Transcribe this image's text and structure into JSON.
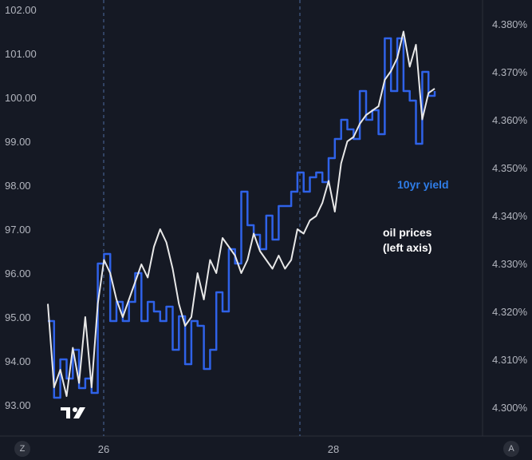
{
  "chart_data": {
    "type": "line",
    "title": "",
    "x_ticks": [
      "26",
      "28"
    ],
    "left_axis": {
      "label": "",
      "ticks": [
        "102.00",
        "101.00",
        "100.00",
        "99.00",
        "98.00",
        "97.00",
        "96.00",
        "95.00",
        "94.00",
        "93.00"
      ],
      "range": [
        92.9,
        102.3
      ]
    },
    "right_axis": {
      "label": "",
      "ticks": [
        "4.380%",
        "4.370%",
        "4.360%",
        "4.350%",
        "4.340%",
        "4.330%",
        "4.320%",
        "4.310%",
        "4.300%"
      ],
      "range": [
        4.2982,
        4.3845
      ]
    },
    "series": [
      {
        "name": "oil prices (left axis)",
        "axis": "left",
        "color": "#e8e8e8",
        "x": [
          0,
          1,
          2,
          3,
          4,
          5,
          6,
          7,
          8,
          9,
          10,
          11,
          12,
          13,
          14,
          15,
          16,
          17,
          18,
          19,
          20,
          21,
          22,
          23,
          24,
          25,
          26,
          27,
          28,
          29,
          30,
          31,
          32,
          33,
          34,
          35,
          36,
          37,
          38,
          39,
          40,
          41,
          42,
          43,
          44,
          45,
          46,
          47,
          48,
          49,
          50,
          51,
          52,
          53,
          54,
          55,
          56,
          57,
          58,
          59,
          60,
          61,
          62
        ],
        "values": [
          95.3,
          93.4,
          93.8,
          93.2,
          94.3,
          93.5,
          95.0,
          93.4,
          95.3,
          96.3,
          96.0,
          95.4,
          95.0,
          95.4,
          95.8,
          96.2,
          95.9,
          96.6,
          97.0,
          96.7,
          96.1,
          95.3,
          94.8,
          95.0,
          96.0,
          95.4,
          96.3,
          96.0,
          96.8,
          96.6,
          96.4,
          96.0,
          96.3,
          96.9,
          96.5,
          96.3,
          96.1,
          96.4,
          96.1,
          96.3,
          97.0,
          96.9,
          97.2,
          97.3,
          97.6,
          98.1,
          97.4,
          98.5,
          99.0,
          99.1,
          99.4,
          99.6,
          99.7,
          99.8,
          100.4,
          100.6,
          100.9,
          101.5,
          100.7,
          101.2,
          99.5,
          100.1,
          100.2
        ]
      },
      {
        "name": "10yr yield",
        "axis": "right",
        "color": "#2f62e8",
        "x": [
          0,
          1,
          2,
          3,
          4,
          5,
          6,
          7,
          8,
          9,
          10,
          11,
          12,
          13,
          14,
          15,
          16,
          17,
          18,
          19,
          20,
          21,
          22,
          23,
          24,
          25,
          26,
          27,
          28,
          29,
          30,
          31,
          32,
          33,
          34,
          35,
          36,
          37,
          38,
          39,
          40,
          41,
          42,
          43,
          44,
          45,
          46,
          47,
          48,
          49,
          50,
          51,
          52,
          53,
          54,
          55,
          56,
          57,
          58,
          59,
          60,
          61,
          62
        ],
        "values": [
          4.318,
          4.302,
          4.31,
          4.306,
          4.312,
          4.304,
          4.306,
          4.303,
          4.33,
          4.332,
          4.318,
          4.322,
          4.318,
          4.322,
          4.328,
          4.318,
          4.322,
          4.32,
          4.318,
          4.321,
          4.312,
          4.319,
          4.309,
          4.318,
          4.317,
          4.308,
          4.312,
          4.324,
          4.32,
          4.333,
          4.33,
          4.345,
          4.338,
          4.336,
          4.333,
          4.34,
          4.335,
          4.342,
          4.342,
          4.345,
          4.349,
          4.345,
          4.348,
          4.349,
          4.347,
          4.352,
          4.356,
          4.36,
          4.358,
          4.356,
          4.366,
          4.36,
          4.362,
          4.357,
          4.377,
          4.366,
          4.377,
          4.366,
          4.364,
          4.355,
          4.37,
          4.365,
          4.366
        ]
      }
    ],
    "annotations": [
      {
        "text": "10yr yield",
        "color": "#2f7de8"
      },
      {
        "lines": [
          "oil prices",
          "(left axis)"
        ],
        "color": "#ffffff"
      }
    ],
    "grid": false
  },
  "ui": {
    "corner_left": "Z",
    "corner_right": "A"
  }
}
